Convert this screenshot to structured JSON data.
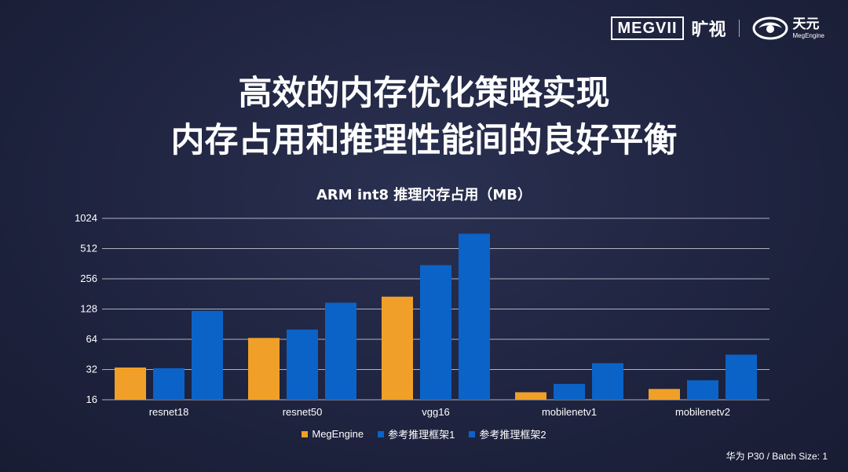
{
  "header": {
    "brand_box": "MEGVII",
    "brand_cn": "旷视",
    "product_cn": "天元",
    "product_en": "MegEngine"
  },
  "headline": {
    "line1": "高效的内存优化策略实现",
    "line2": "内存占用和推理性能间的良好平衡"
  },
  "footnote": "华为 P30 / Batch Size: 1",
  "chart_data": {
    "type": "bar",
    "title": "ARM int8 推理内存占用（MB）",
    "xlabel": "",
    "ylabel": "",
    "yscale": "log2",
    "ylim": [
      16,
      1024
    ],
    "yticks": [
      "16",
      "32",
      "64",
      "128",
      "256",
      "512",
      "1024"
    ],
    "grid": true,
    "legend_position": "bottom",
    "categories": [
      "resnet18",
      "resnet50",
      "vgg16",
      "mobilenetv1",
      "mobilenetv2"
    ],
    "series": [
      {
        "name": "MegEngine",
        "color": "#F0A028",
        "values": [
          33.5,
          66,
          170,
          19,
          20.5
        ]
      },
      {
        "name": "参考推理框架1",
        "color": "#0B63C8",
        "values": [
          33,
          80,
          350,
          23,
          25
        ]
      },
      {
        "name": "参考推理框架2",
        "color": "#0B63C8",
        "values": [
          123,
          148,
          720,
          37,
          45
        ]
      }
    ]
  }
}
